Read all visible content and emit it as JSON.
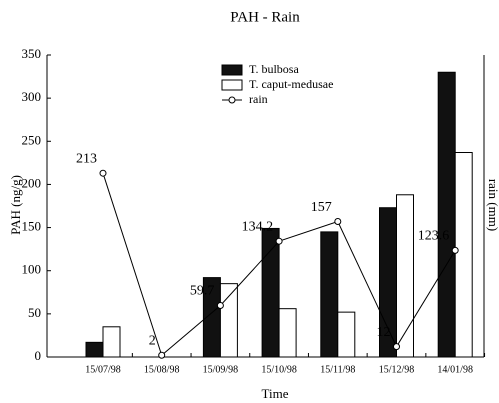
{
  "chart_data": {
    "type": "bar",
    "title": "PAH - Rain",
    "x_label": "Time",
    "y_label": "PAH (ng/g)",
    "y2_label": "rain (mm)",
    "categories": [
      "15/07/98",
      "15/08/98",
      "15/09/98",
      "15/10/98",
      "15/11/98",
      "15/12/98",
      "14/01/98"
    ],
    "series": [
      {
        "name": "T. bulbosa",
        "color": "#111111",
        "type": "bar",
        "values": [
          17,
          null,
          92,
          149,
          145,
          173,
          330
        ]
      },
      {
        "name": "T. caput-medusae",
        "color": "#ffffff",
        "type": "bar",
        "values": [
          35,
          null,
          85,
          56,
          52,
          188,
          237
        ]
      },
      {
        "name": "rain",
        "color": "#000000",
        "type": "line",
        "axis": "y2",
        "values": [
          213,
          2,
          59.7,
          134.2,
          157,
          12,
          123.6
        ]
      }
    ],
    "ylim": [
      0,
      350
    ],
    "yticks": [
      0,
      50,
      100,
      150,
      200,
      250,
      300,
      350
    ],
    "y2lim": [
      0,
      350
    ],
    "legend": "top-center"
  }
}
